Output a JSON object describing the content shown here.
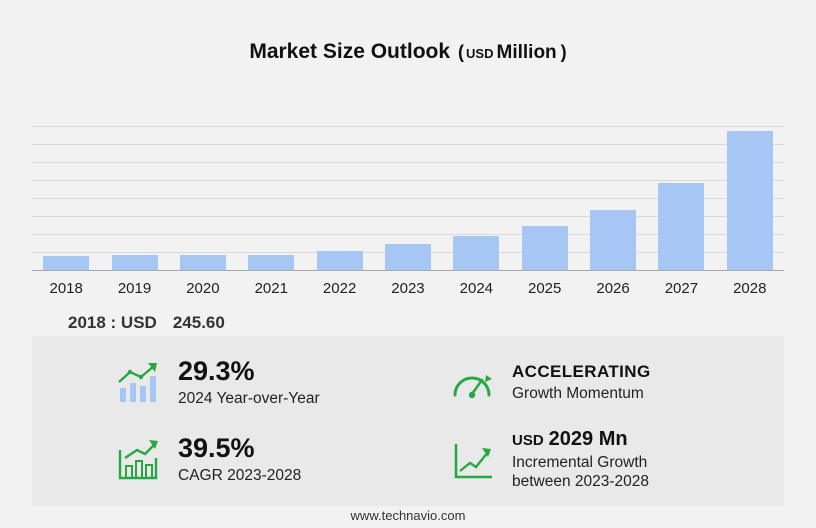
{
  "title": {
    "main": "Market Size Outlook",
    "paren_open": "(",
    "currency": "USD",
    "unit": "Million",
    "paren_close": ")"
  },
  "chart_data": {
    "type": "bar",
    "title": "Market Size Outlook (USD Million)",
    "categories": [
      "2018",
      "2019",
      "2020",
      "2021",
      "2022",
      "2023",
      "2024",
      "2025",
      "2026",
      "2027",
      "2028"
    ],
    "values": [
      245.6,
      270,
      262,
      278,
      335,
      475,
      614,
      790,
      1080,
      1570,
      2504
    ],
    "ylabel": "USD Million",
    "xlabel": "",
    "ylim": [
      0,
      2600
    ],
    "grid": true,
    "legend_position": "none",
    "annotations": [
      "2018 : USD 245.60"
    ]
  },
  "annotation": {
    "label": "2018 : USD",
    "value": "245.60"
  },
  "stats": [
    {
      "icon": "bar-chart-growth-icon",
      "value": "29.3%",
      "label": "2024 Year-over-Year"
    },
    {
      "icon": "speedometer-icon",
      "value": "ACCELERATING",
      "label": "Growth Momentum"
    },
    {
      "icon": "cagr-chart-icon",
      "value": "39.5%",
      "label": "CAGR 2023-2028"
    },
    {
      "icon": "incremental-growth-icon",
      "value_prefix": "USD",
      "value": "2029 Mn",
      "label": "Incremental Growth",
      "label2": "between 2023-2028"
    }
  ],
  "footer": {
    "url": "www.technavio.com"
  },
  "colors": {
    "bar": "#a6c7f4",
    "accent_green": "#27a844",
    "background": "#f2f2f2",
    "panel": "#e9e9e9",
    "gridline": "#d9d9d9"
  }
}
